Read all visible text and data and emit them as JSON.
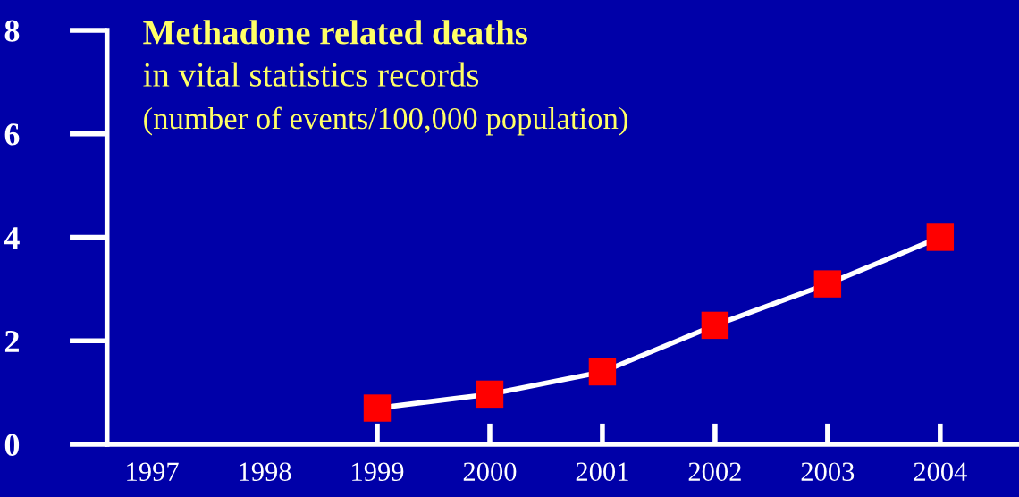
{
  "chart_data": {
    "type": "line",
    "title": "Methadone related deaths",
    "subtitle": "in vital statistics records",
    "ylabel": "(number of events/100,000 population)",
    "categories": [
      "1997",
      "1998",
      "1999",
      "2000",
      "2001",
      "2002",
      "2003",
      "2004"
    ],
    "series": [
      {
        "color": "#ff0000",
        "values": [
          null,
          null,
          0.7,
          0.97,
          1.4,
          2.3,
          3.1,
          4.0
        ]
      }
    ],
    "ylim": [
      0,
      8
    ],
    "yticks": [
      0,
      2,
      4,
      6,
      8
    ],
    "marker": "square",
    "grid": false
  }
}
